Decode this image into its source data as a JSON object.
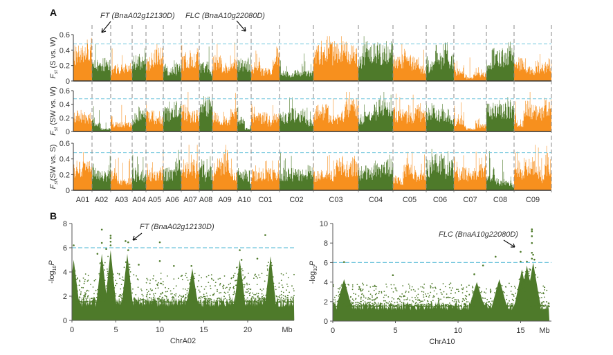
{
  "chart_data": [
    {
      "type": "bar",
      "panel_label": "A",
      "title": "",
      "rows": [
        {
          "ylabel": "Fst (S vs. W)",
          "ylabel_main": "F",
          "ylabel_sub": "st",
          "ylabel_rest": " (S vs. W)",
          "seed": 11
        },
        {
          "ylabel": "Fst (SW vs. W)",
          "ylabel_main": "F",
          "ylabel_sub": "st",
          "ylabel_rest": " (SW vs. W)",
          "seed": 23
        },
        {
          "ylabel": "Fst(SW vs. S)",
          "ylabel_main": "F",
          "ylabel_sub": "st",
          "ylabel_rest": "(SW vs. S)",
          "seed": 37
        }
      ],
      "ylim": [
        0,
        0.6
      ],
      "yticks": [
        "0",
        "0.2",
        "0.4",
        "0.6"
      ],
      "threshold": 0.48,
      "chromosomes": [
        {
          "name": "A01",
          "length_mb": 27,
          "color": "#f7901e"
        },
        {
          "name": "A02",
          "length_mb": 27,
          "color": "#4e7a2a"
        },
        {
          "name": "A03",
          "length_mb": 31,
          "color": "#f7901e"
        },
        {
          "name": "A04",
          "length_mb": 20,
          "color": "#4e7a2a"
        },
        {
          "name": "A05",
          "length_mb": 25,
          "color": "#f7901e"
        },
        {
          "name": "A06",
          "length_mb": 26,
          "color": "#4e7a2a"
        },
        {
          "name": "A07",
          "length_mb": 26,
          "color": "#f7901e"
        },
        {
          "name": "A08",
          "length_mb": 19,
          "color": "#4e7a2a"
        },
        {
          "name": "A09",
          "length_mb": 36,
          "color": "#f7901e"
        },
        {
          "name": "A10",
          "length_mb": 20,
          "color": "#4e7a2a"
        },
        {
          "name": "C01",
          "length_mb": 41,
          "color": "#f7901e"
        },
        {
          "name": "C02",
          "length_mb": 49,
          "color": "#4e7a2a"
        },
        {
          "name": "C03",
          "length_mb": 65,
          "color": "#f7901e"
        },
        {
          "name": "C04",
          "length_mb": 50,
          "color": "#4e7a2a"
        },
        {
          "name": "C05",
          "length_mb": 48,
          "color": "#f7901e"
        },
        {
          "name": "C06",
          "length_mb": 40,
          "color": "#4e7a2a"
        },
        {
          "name": "C07",
          "length_mb": 47,
          "color": "#f7901e"
        },
        {
          "name": "C08",
          "length_mb": 40,
          "color": "#4e7a2a"
        },
        {
          "name": "C09",
          "length_mb": 54,
          "color": "#f7901e"
        }
      ],
      "annotations": [
        {
          "text": "FT (BnaA02g12130D)",
          "chromosome": "A02"
        },
        {
          "text": "FLC (BnaA10g22080D)",
          "chromosome": "A10"
        }
      ]
    },
    {
      "type": "scatter",
      "panel_label": "B",
      "xlabel": "ChrA02",
      "ylabel": "-log10P",
      "ylabel_main": "-log",
      "ylabel_sub": "10",
      "ylabel_rest": "P",
      "xlim": [
        0,
        25.3
      ],
      "ylim": [
        0,
        8
      ],
      "xticks": [
        "0",
        "5",
        "10",
        "15",
        "20"
      ],
      "x_unit": "Mb",
      "yticks": [
        "0",
        "2",
        "4",
        "6",
        "8"
      ],
      "threshold": 6,
      "color": "#4e7a2a",
      "annotation": {
        "text": "FT (BnaA02g12130D)",
        "x": 6.4,
        "y": 6.45
      },
      "peaks": [
        {
          "x": 3.4,
          "y": 7.5
        },
        {
          "x": 3.4,
          "y": 6.4
        },
        {
          "x": 4.4,
          "y": 7.0
        },
        {
          "x": 4.4,
          "y": 6.8
        },
        {
          "x": 4.4,
          "y": 6.5
        },
        {
          "x": 4.4,
          "y": 6.2
        },
        {
          "x": 3.9,
          "y": 5.9
        },
        {
          "x": 6.1,
          "y": 6.55
        },
        {
          "x": 6.4,
          "y": 6.45
        },
        {
          "x": 6.4,
          "y": 5.8
        },
        {
          "x": 10.0,
          "y": 6.45
        },
        {
          "x": 10.0,
          "y": 4.9
        },
        {
          "x": 22.0,
          "y": 7.05
        },
        {
          "x": 19.1,
          "y": 5.8
        },
        {
          "x": 0.2,
          "y": 6.2
        },
        {
          "x": 2.9,
          "y": 5.5
        },
        {
          "x": 19.3,
          "y": 5.0
        },
        {
          "x": 21.1,
          "y": 5.1
        },
        {
          "x": 11.6,
          "y": 4.5
        },
        {
          "x": 13.6,
          "y": 4.5
        },
        {
          "x": 7.6,
          "y": 4.6
        }
      ],
      "hot_regions": [
        [
          0.2,
          4.5
        ],
        [
          3.4,
          5.0
        ],
        [
          4.4,
          5.3
        ],
        [
          6.3,
          5.0
        ],
        [
          13.7,
          3.8
        ],
        [
          19.1,
          4.5
        ],
        [
          22.6,
          4.8
        ]
      ],
      "seed": 5
    },
    {
      "type": "scatter",
      "xlabel": "ChrA10",
      "ylabel": "-log10P",
      "ylabel_main": "-log",
      "ylabel_sub": "10",
      "ylabel_rest": "P",
      "xlim": [
        0,
        17.3
      ],
      "ylim": [
        0,
        10
      ],
      "xticks": [
        "0",
        "5",
        "10",
        "15"
      ],
      "x_unit": "Mb",
      "yticks": [
        "0",
        "2",
        "4",
        "6",
        "8",
        "10"
      ],
      "threshold": 6,
      "color": "#4e7a2a",
      "annotation": {
        "text": "FLC (BnaA10g22080D)",
        "x": 14.9,
        "y": 7.1
      },
      "peaks": [
        {
          "x": 15.9,
          "y": 9.4
        },
        {
          "x": 15.9,
          "y": 9.2
        },
        {
          "x": 15.9,
          "y": 8.7
        },
        {
          "x": 15.9,
          "y": 8.0
        },
        {
          "x": 15.9,
          "y": 7.0
        },
        {
          "x": 16.0,
          "y": 6.8
        },
        {
          "x": 16.1,
          "y": 6.3
        },
        {
          "x": 15.9,
          "y": 6.4
        },
        {
          "x": 15.0,
          "y": 7.1
        },
        {
          "x": 15.0,
          "y": 6.1
        },
        {
          "x": 15.5,
          "y": 6.1
        },
        {
          "x": 13.0,
          "y": 6.6
        },
        {
          "x": 0.9,
          "y": 6.05
        },
        {
          "x": 12.0,
          "y": 5.7
        },
        {
          "x": 4.8,
          "y": 4.7
        },
        {
          "x": 11.3,
          "y": 4.8
        }
      ],
      "hot_regions": [
        [
          15.1,
          4.8
        ],
        [
          15.5,
          5.2
        ],
        [
          16.0,
          5.5
        ],
        [
          0.9,
          3.8
        ],
        [
          11.5,
          3.5
        ],
        [
          13.3,
          3.8
        ]
      ],
      "seed": 9
    }
  ]
}
